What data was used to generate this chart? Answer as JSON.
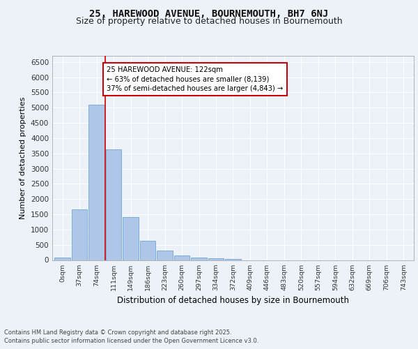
{
  "title1": "25, HAREWOOD AVENUE, BOURNEMOUTH, BH7 6NJ",
  "title2": "Size of property relative to detached houses in Bournemouth",
  "xlabel": "Distribution of detached houses by size in Bournemouth",
  "ylabel": "Number of detached properties",
  "categories": [
    "0sqm",
    "37sqm",
    "74sqm",
    "111sqm",
    "149sqm",
    "186sqm",
    "223sqm",
    "260sqm",
    "297sqm",
    "334sqm",
    "372sqm",
    "409sqm",
    "446sqm",
    "483sqm",
    "520sqm",
    "557sqm",
    "594sqm",
    "632sqm",
    "669sqm",
    "706sqm",
    "743sqm"
  ],
  "values": [
    75,
    1650,
    5100,
    3620,
    1420,
    620,
    310,
    150,
    90,
    55,
    30,
    0,
    0,
    0,
    0,
    0,
    0,
    0,
    0,
    0,
    0
  ],
  "bar_color": "#aec6e8",
  "bar_edge_color": "#5b9bd5",
  "vline_x_index": 3,
  "vline_color": "#cc0000",
  "annotation_text": "25 HAREWOOD AVENUE: 122sqm\n← 63% of detached houses are smaller (8,139)\n37% of semi-detached houses are larger (4,843) →",
  "annotation_box_color": "#ffffff",
  "annotation_box_edge_color": "#cc0000",
  "ylim": [
    0,
    6700
  ],
  "yticks": [
    0,
    500,
    1000,
    1500,
    2000,
    2500,
    3000,
    3500,
    4000,
    4500,
    5000,
    5500,
    6000,
    6500
  ],
  "footer1": "Contains HM Land Registry data © Crown copyright and database right 2025.",
  "footer2": "Contains public sector information licensed under the Open Government Licence v3.0.",
  "bg_color": "#edf2f9",
  "plot_bg_color": "#edf2f9",
  "grid_color": "#ffffff",
  "title1_fontsize": 10,
  "title2_fontsize": 9
}
